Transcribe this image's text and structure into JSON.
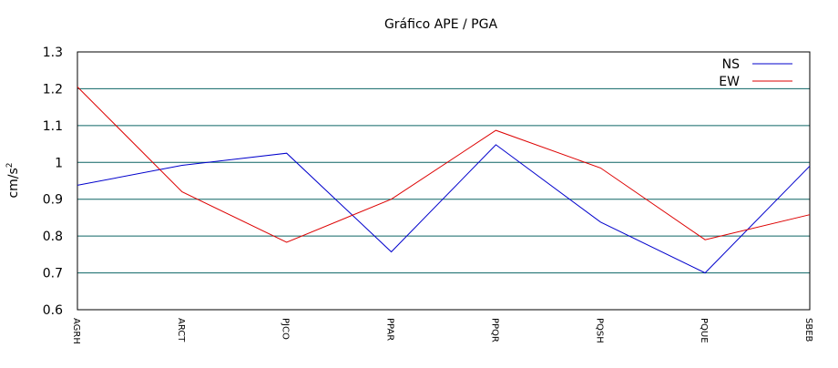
{
  "chart_data": {
    "type": "line",
    "title": "Gráfico  APE / PGA",
    "xlabel": "",
    "ylabel": "cm/s",
    "ylabel_sup": "2",
    "categories": [
      "AGRH",
      "ARCT",
      "PJCO",
      "PPAR",
      "PPQR",
      "PQSH",
      "PQUE",
      "SBEB"
    ],
    "ylim": [
      0.6,
      1.3
    ],
    "yticks": [
      "0.6",
      "0.7",
      "0.8",
      "0.9",
      "1",
      "1.1",
      "1.2",
      "1.3"
    ],
    "grid": true,
    "legend_position": "top-right",
    "series": [
      {
        "name": "NS",
        "color": "#0000cc",
        "values": [
          0.938,
          0.992,
          1.025,
          0.757,
          1.048,
          0.838,
          0.7,
          0.99
        ]
      },
      {
        "name": "EW",
        "color": "#dd0000",
        "values": [
          1.205,
          0.92,
          0.783,
          0.9,
          1.087,
          0.985,
          0.79,
          0.858
        ]
      }
    ]
  }
}
